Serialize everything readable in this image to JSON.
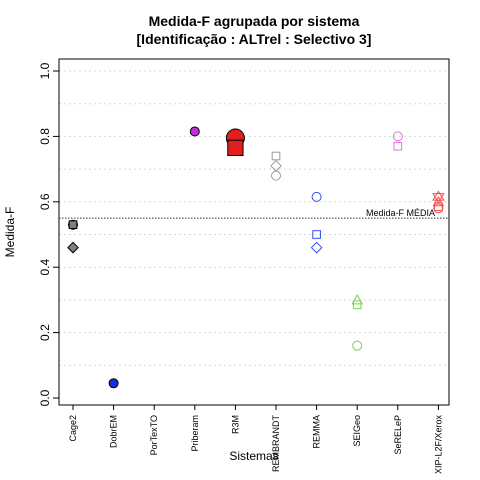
{
  "chart_data": {
    "type": "scatter",
    "title": "Medida-F agrupada por sistema",
    "subtitle": "[Identificação : ALTrel : Selectivo 3]",
    "xlabel": "Sistemas",
    "ylabel": "Medida-F",
    "ylim": [
      0.0,
      1.0
    ],
    "yticks": [
      "0.0",
      "0.2",
      "0.4",
      "0.6",
      "0.8",
      "1.0"
    ],
    "grid": "horizontal dotted",
    "categories": [
      "Cage2",
      "DobrEM",
      "PorTexTO",
      "Priberam",
      "R3M",
      "REMBRANDT",
      "REMMA",
      "SEIGeo",
      "SeRELeP",
      "XIP-L2F/Xerox"
    ],
    "reference_line": {
      "label": "Medida-F MÉDIA",
      "value": 0.55
    },
    "points": [
      {
        "category": "Cage2",
        "value": 0.53,
        "shape": "circle",
        "filled": true,
        "color": "#808080"
      },
      {
        "category": "Cage2",
        "value": 0.53,
        "shape": "square",
        "filled": true,
        "color": "#808080"
      },
      {
        "category": "Cage2",
        "value": 0.46,
        "shape": "diamond",
        "filled": true,
        "color": "#808080"
      },
      {
        "category": "DobrEM",
        "value": 0.045,
        "shape": "circle",
        "filled": true,
        "color": "#1030d8"
      },
      {
        "category": "Priberam",
        "value": 0.815,
        "shape": "circle",
        "filled": true,
        "color": "#c030d8"
      },
      {
        "category": "R3M",
        "value": 0.795,
        "shape": "circle",
        "filled": true,
        "color": "#e02020",
        "large": true
      },
      {
        "category": "R3M",
        "value": 0.765,
        "shape": "square",
        "filled": true,
        "color": "#e02020",
        "large": true
      },
      {
        "category": "REMBRANDT",
        "value": 0.74,
        "shape": "square",
        "filled": false,
        "color": "#999999"
      },
      {
        "category": "REMBRANDT",
        "value": 0.71,
        "shape": "diamond",
        "filled": false,
        "color": "#999999"
      },
      {
        "category": "REMBRANDT",
        "value": 0.68,
        "shape": "circle",
        "filled": false,
        "color": "#999999"
      },
      {
        "category": "REMMA",
        "value": 0.615,
        "shape": "circle",
        "filled": false,
        "color": "#3050f0"
      },
      {
        "category": "REMMA",
        "value": 0.5,
        "shape": "square",
        "filled": false,
        "color": "#3050f0"
      },
      {
        "category": "REMMA",
        "value": 0.46,
        "shape": "diamond",
        "filled": false,
        "color": "#3050f0"
      },
      {
        "category": "SEIGeo",
        "value": 0.3,
        "shape": "triangle",
        "filled": false,
        "color": "#7ed04a"
      },
      {
        "category": "SEIGeo",
        "value": 0.285,
        "shape": "square",
        "filled": false,
        "color": "#7ed04a"
      },
      {
        "category": "SEIGeo",
        "value": 0.16,
        "shape": "circle",
        "filled": false,
        "color": "#7ed04a"
      },
      {
        "category": "SeRELeP",
        "value": 0.8,
        "shape": "circle",
        "filled": false,
        "color": "#e070e8"
      },
      {
        "category": "SeRELeP",
        "value": 0.77,
        "shape": "square",
        "filled": false,
        "color": "#e070e8"
      },
      {
        "category": "XIP-L2F/Xerox",
        "value": 0.615,
        "shape": "star",
        "filled": false,
        "color": "#f05050"
      },
      {
        "category": "XIP-L2F/Xerox",
        "value": 0.6,
        "shape": "triangle",
        "filled": false,
        "color": "#f05050"
      },
      {
        "category": "XIP-L2F/Xerox",
        "value": 0.58,
        "shape": "circle",
        "filled": false,
        "color": "#f05050"
      },
      {
        "category": "XIP-L2F/Xerox",
        "value": 0.585,
        "shape": "square",
        "filled": false,
        "color": "#f05050"
      }
    ]
  }
}
